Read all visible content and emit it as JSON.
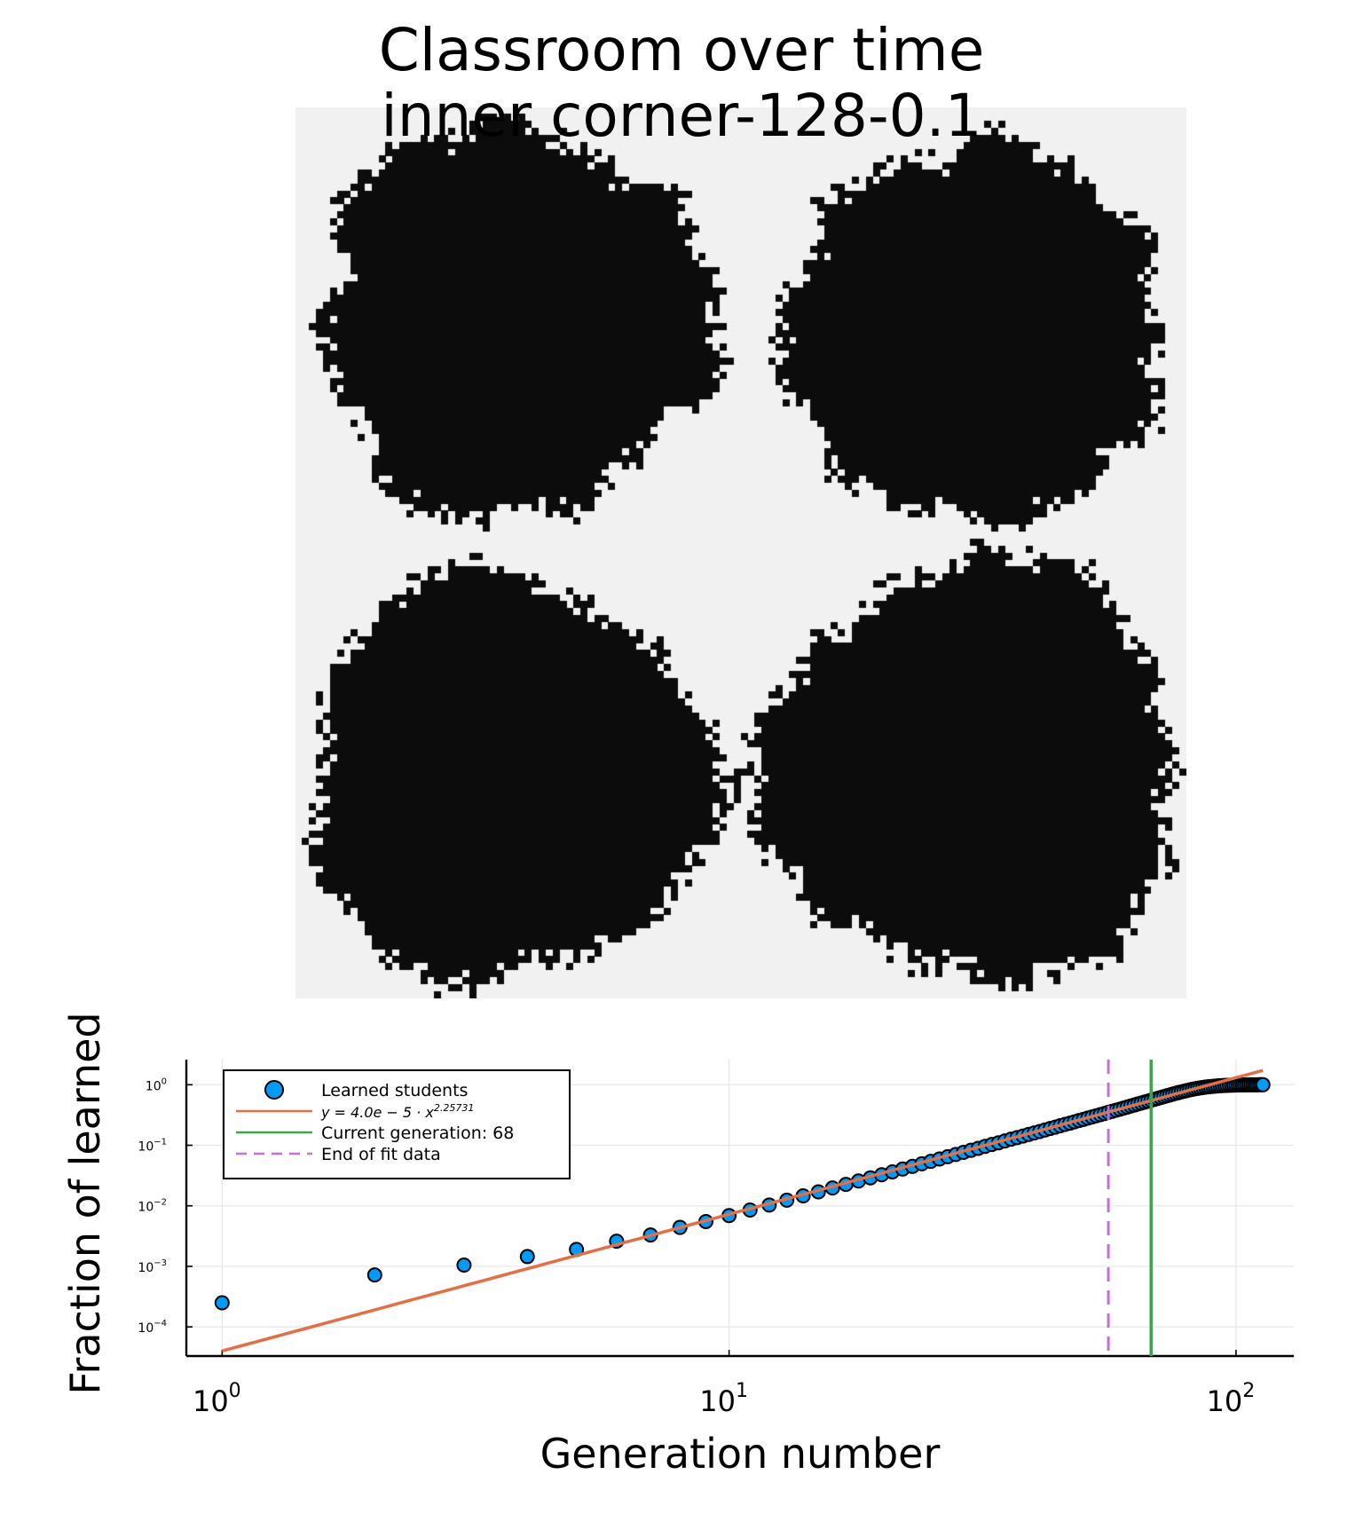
{
  "title": {
    "line1": "Classroom over time",
    "line2": "inner corner-128-0.1"
  },
  "classroom_grid": {
    "cols": 128,
    "rows": 128,
    "background_color": "#f1f1f1",
    "learned_color": "#0c0c0c",
    "clusters": [
      {
        "center": [
          31,
          30
        ],
        "radius": 28
      },
      {
        "center": [
          97,
          32
        ],
        "radius": 27
      },
      {
        "center": [
          30,
          96
        ],
        "radius": 29
      },
      {
        "center": [
          97,
          95
        ],
        "radius": 30
      }
    ]
  },
  "chart_data": {
    "type": "scatter",
    "xlabel": "Generation number",
    "ylabel": "Fraction of learned",
    "xscale": "log",
    "yscale": "log",
    "xlim": [
      0.85,
      130
    ],
    "ylim": [
      3.3e-05,
      2.6
    ],
    "x_ticks": [
      {
        "value": 1,
        "base": "10",
        "exp": "0"
      },
      {
        "value": 10,
        "base": "10",
        "exp": "1"
      },
      {
        "value": 100,
        "base": "10",
        "exp": "2"
      }
    ],
    "y_ticks": [
      {
        "value": 0.0001,
        "base": "10",
        "exp": "−4"
      },
      {
        "value": 0.001,
        "base": "10",
        "exp": "−3"
      },
      {
        "value": 0.01,
        "base": "10",
        "exp": "−2"
      },
      {
        "value": 0.1,
        "base": "10",
        "exp": "−1"
      },
      {
        "value": 1,
        "base": "10",
        "exp": "0"
      }
    ],
    "grid": true,
    "legend_position": "top-left",
    "series": [
      {
        "name": "Learned students",
        "kind": "scatter",
        "color": "#009af9",
        "x": [
          1,
          2,
          3,
          4,
          5,
          6,
          7,
          8,
          9,
          10,
          11,
          12,
          13,
          14,
          15,
          16,
          17,
          18,
          19,
          20,
          21,
          22,
          23,
          24,
          25,
          26,
          27,
          28,
          29,
          30,
          31,
          32,
          33,
          34,
          35,
          36,
          37,
          38,
          39,
          40,
          41,
          42,
          43,
          44,
          45,
          46,
          47,
          48,
          49,
          50,
          51,
          52,
          53,
          54,
          55,
          56,
          57,
          58,
          59,
          60,
          61,
          62,
          63,
          64,
          65,
          66,
          67,
          68,
          69,
          70,
          71,
          72,
          73,
          74,
          75,
          76,
          77,
          78,
          79,
          80,
          81,
          82,
          83,
          84,
          85,
          86,
          87,
          88,
          89,
          90,
          91,
          92,
          93,
          94,
          95,
          96,
          97,
          98,
          99,
          100,
          101,
          102,
          103,
          104,
          105,
          106,
          107,
          108,
          109,
          110,
          111,
          112,
          113
        ],
        "y": [
          0.00025,
          0.00072,
          0.00105,
          0.00145,
          0.0019,
          0.0026,
          0.0033,
          0.0044,
          0.0055,
          0.0069,
          0.0085,
          0.0103,
          0.0124,
          0.0146,
          0.017,
          0.0197,
          0.0226,
          0.0257,
          0.029,
          0.0326,
          0.0364,
          0.0405,
          0.0448,
          0.0494,
          0.0542,
          0.0593,
          0.0647,
          0.0704,
          0.0763,
          0.0826,
          0.0891,
          0.0959,
          0.103,
          0.11,
          0.118,
          0.126,
          0.134,
          0.142,
          0.151,
          0.16,
          0.169,
          0.179,
          0.189,
          0.199,
          0.21,
          0.221,
          0.232,
          0.244,
          0.256,
          0.268,
          0.281,
          0.294,
          0.307,
          0.321,
          0.335,
          0.35,
          0.364,
          0.38,
          0.395,
          0.411,
          0.428,
          0.445,
          0.462,
          0.48,
          0.498,
          0.516,
          0.535,
          0.555,
          0.574,
          0.594,
          0.615,
          0.636,
          0.657,
          0.678,
          0.699,
          0.72,
          0.741,
          0.762,
          0.782,
          0.802,
          0.821,
          0.839,
          0.856,
          0.872,
          0.886,
          0.9,
          0.912,
          0.923,
          0.933,
          0.942,
          0.95,
          0.957,
          0.963,
          0.968,
          0.973,
          0.977,
          0.981,
          0.984,
          0.987,
          0.989,
          0.991,
          0.993,
          0.994,
          0.995,
          0.996,
          0.997,
          0.998,
          0.998,
          0.999,
          0.999,
          1.0,
          1.0,
          1.0
        ]
      },
      {
        "name": "y = 4.0e − 5 · x^2.25731",
        "kind": "line",
        "color": "#e26f46",
        "coefficient": 4e-05,
        "exponent": 2.25731,
        "x_range": [
          1,
          113
        ]
      },
      {
        "name": "Current generation: 68",
        "kind": "vline",
        "color": "#3da44d",
        "x": 68
      },
      {
        "name": "End of fit data",
        "kind": "vline-dashed",
        "color": "#c271d2",
        "x": 56
      }
    ]
  }
}
